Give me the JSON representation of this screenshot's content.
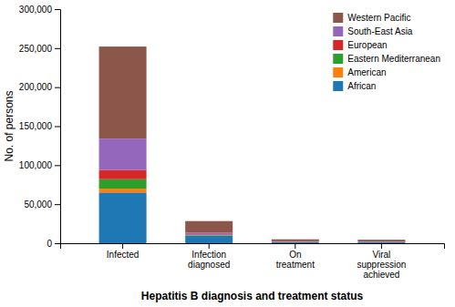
{
  "chart_data": {
    "type": "bar",
    "stacked": true,
    "categories": [
      "Infected",
      "Infection\ndiagnosed",
      "On\ntreatment",
      "Viral\nsuppression\nachieved"
    ],
    "series": [
      {
        "name": "African",
        "values": [
          65000,
          9500,
          1500,
          1500
        ]
      },
      {
        "name": "American",
        "values": [
          5000,
          300,
          100,
          100
        ]
      },
      {
        "name": "Eastern Mediterranean",
        "values": [
          12000,
          800,
          200,
          150
        ]
      },
      {
        "name": "European",
        "values": [
          12000,
          800,
          200,
          150
        ]
      },
      {
        "name": "South-East Asia",
        "values": [
          40000,
          2000,
          500,
          400
        ]
      },
      {
        "name": "Western Pacific",
        "values": [
          118000,
          15000,
          2500,
          2200
        ]
      }
    ],
    "ylim": [
      0,
      300000
    ],
    "yticks": [
      0,
      {
        "value": 50000,
        "label": "50,000"
      },
      {
        "value": 100000,
        "label": "100,000"
      },
      {
        "value": 150000,
        "label": "150,000"
      },
      {
        "value": 200000,
        "label": "200,000"
      },
      {
        "value": 250000,
        "label": "250,000"
      },
      {
        "value": 300000,
        "label": "300,000"
      }
    ],
    "ylabel": "No. of persons",
    "xlabel": "Hepatitis B diagnosis and treatment status",
    "legend": "top-right",
    "grid": false
  }
}
